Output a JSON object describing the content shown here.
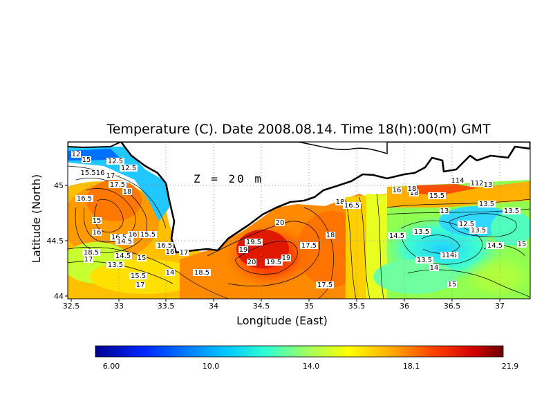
{
  "title": "Temperature (C). Date 2008.08.14. Time 18(h):00(m) GMT",
  "depth_label": "Z = 20 m",
  "x_axis": {
    "label": "Longitude (East)",
    "ticks": [
      "32.5",
      "33",
      "33.5",
      "34",
      "34.5",
      "35",
      "35.5",
      "36",
      "36.5",
      "37"
    ]
  },
  "y_axis": {
    "label": "Latitude (North)",
    "ticks": [
      "44",
      "44.5",
      "45"
    ]
  },
  "colorbar": {
    "tick_labels": [
      "6.00",
      "10.0",
      "14.0",
      "18.1",
      "21.9"
    ],
    "colors": [
      "#00008f",
      "#0028ff",
      "#00c8ff",
      "#30ffd0",
      "#a0ff60",
      "#ffff00",
      "#ffb000",
      "#ff4000",
      "#d00000",
      "#6a0000"
    ]
  },
  "contour_labels": [
    "12",
    "15",
    "12.5",
    "15.516",
    "17",
    "12.5",
    "17.5",
    "18",
    "16.5",
    "15",
    "16",
    "16.5",
    "16",
    "15.5",
    "14.5",
    "16.5",
    "16",
    "17",
    "18.5",
    "17",
    "14.5",
    "13.5",
    "15",
    "15.5",
    "17",
    "14",
    "18.5",
    "20",
    "19",
    "19.5",
    "20",
    "19.5",
    "17.5",
    "18",
    "19",
    "18",
    "16.5",
    "18",
    "16",
    "18",
    "14.5",
    "13",
    "12.5",
    "13.5",
    "13.5",
    "14.5",
    "15",
    "13.5",
    "14",
    "13.5",
    "14",
    "15.5",
    "13.5",
    "14.5",
    "15",
    "13",
    "17.5",
    "112",
    "114"
  ]
}
